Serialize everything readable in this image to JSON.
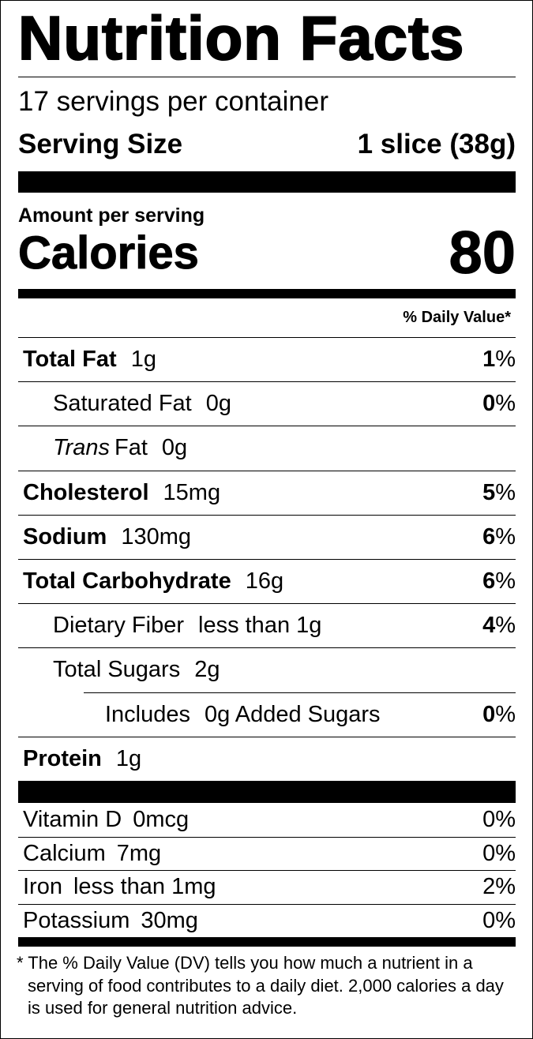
{
  "header": {
    "title": "Nutrition Facts",
    "servings": "17 servings per container",
    "serving_size_label": "Serving Size",
    "serving_size_value": "1 slice (38g)"
  },
  "calories": {
    "amount_label": "Amount per serving",
    "label": "Calories",
    "value": "80"
  },
  "dv_header": "% Daily Value*",
  "nutrients": [
    {
      "level": 0,
      "name": "Total Fat",
      "amount": "1g",
      "dv_number": "1",
      "dv_symbol": "%"
    },
    {
      "level": 1,
      "name": "Saturated Fat",
      "amount": "0g",
      "dv_number": "0",
      "dv_symbol": "%"
    },
    {
      "level": 1,
      "name_italic": "Trans",
      "name": "Fat",
      "amount": "0g"
    },
    {
      "level": 0,
      "name": "Cholesterol",
      "amount": "15mg",
      "dv_number": "5",
      "dv_symbol": "%"
    },
    {
      "level": 0,
      "name": "Sodium",
      "amount": "130mg",
      "dv_number": "6",
      "dv_symbol": "%"
    },
    {
      "level": 0,
      "name": "Total Carbohydrate",
      "amount": "16g",
      "dv_number": "6",
      "dv_symbol": "%"
    },
    {
      "level": 1,
      "name": "Dietary Fiber",
      "amount": "less than 1g",
      "dv_number": "4",
      "dv_symbol": "%"
    },
    {
      "level": 1,
      "name": "Total Sugars",
      "amount": "2g"
    },
    {
      "level": 2,
      "name": "Includes",
      "amount": "0g Added Sugars",
      "dv_number": "0",
      "dv_symbol": "%"
    },
    {
      "level": 0,
      "name": "Protein",
      "amount": "1g"
    }
  ],
  "vitamins": [
    {
      "name": "Vitamin D",
      "amount": "0mcg",
      "dv": "0%"
    },
    {
      "name": "Calcium",
      "amount": "7mg",
      "dv": "0%"
    },
    {
      "name": "Iron",
      "amount": "less than 1mg",
      "dv": "2%"
    },
    {
      "name": "Potassium",
      "amount": "30mg",
      "dv": "0%"
    }
  ],
  "footnote": "* The % Daily Value (DV) tells you how much a nutrient in a serving of food contributes to a daily diet. 2,000 calories a day is used for general nutrition advice."
}
